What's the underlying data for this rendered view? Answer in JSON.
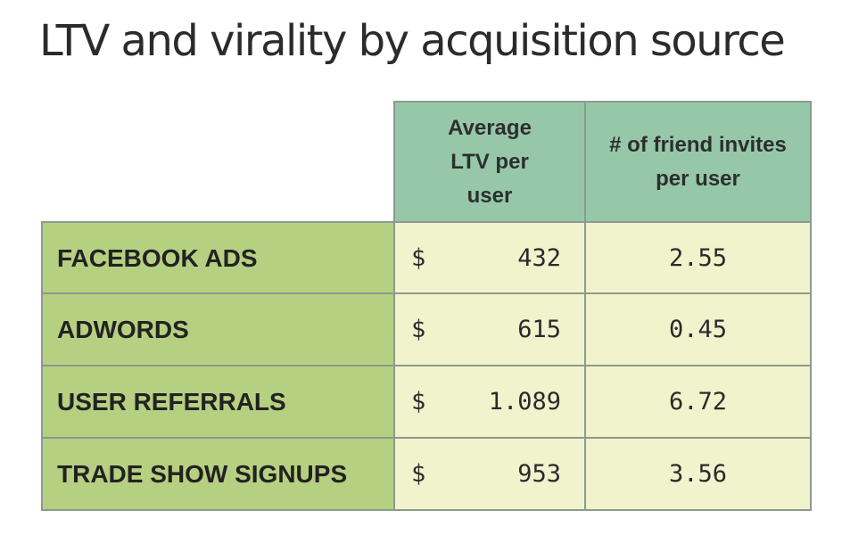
{
  "title": "LTV and virality by acquisition source",
  "chart_data": {
    "type": "table",
    "title": "LTV and virality by acquisition source",
    "columns": [
      "Average LTV per user",
      "# of friend invites per user"
    ],
    "currency_symbol": "$",
    "rows": [
      {
        "source": "FACEBOOK ADS",
        "ltv": "432",
        "invites": "2.55"
      },
      {
        "source": "ADWORDS",
        "ltv": "615",
        "invites": "0.45"
      },
      {
        "source": "USER REFERRALS",
        "ltv": "1.089",
        "invites": "6.72"
      },
      {
        "source": "TRADE SHOW SIGNUPS",
        "ltv": "953",
        "invites": "3.56"
      }
    ]
  },
  "colors": {
    "header_fill": "#96c7a9",
    "row_label_fill": "#b6d081",
    "data_fill": "#f1f3cd",
    "border": "#8c9a8f"
  }
}
